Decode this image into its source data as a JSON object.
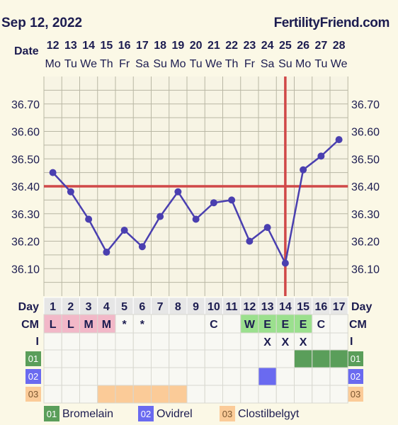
{
  "header": {
    "date": "Sep 12, 2022",
    "site": "FertilityFriend.com"
  },
  "labels": {
    "date_row": "Date",
    "day_row": "Day",
    "cm_row": "CM",
    "i_row": "I"
  },
  "colors": {
    "background": "#fbf8e6",
    "grid_line": "#b9b7a4",
    "temp_line": "#4a3fb0",
    "coverline": "#d04848",
    "cm_pink": "#f2b8c8",
    "cm_green": "#9be08e",
    "med_01": "#5a9e5a",
    "med_02": "#6a6af0",
    "med_03": "#fbcb98",
    "day_cell": "#e6e6e6",
    "row_cell": "#f8f8f3"
  },
  "chart_data": {
    "type": "line",
    "x_dates": [
      "12",
      "13",
      "14",
      "15",
      "16",
      "17",
      "18",
      "19",
      "20",
      "21",
      "22",
      "23",
      "24",
      "25",
      "26",
      "27",
      "28"
    ],
    "x_weekdays": [
      "Mo",
      "Tu",
      "We",
      "Th",
      "Fr",
      "Sa",
      "Su",
      "Mo",
      "Tu",
      "We",
      "Th",
      "Fr",
      "Sa",
      "Su",
      "Mo",
      "Tu",
      "We"
    ],
    "cycle_days": [
      1,
      2,
      3,
      4,
      5,
      6,
      7,
      8,
      9,
      10,
      11,
      12,
      13,
      14,
      15,
      16,
      17
    ],
    "series": [
      {
        "values": [
          36.45,
          36.38,
          36.28,
          36.16,
          36.24,
          36.18,
          36.29,
          36.38,
          36.28,
          36.34,
          36.35,
          36.2,
          36.25,
          36.12,
          36.46,
          36.51,
          36.57
        ]
      }
    ],
    "y_ticks": [
      "36.70",
      "36.60",
      "36.50",
      "36.40",
      "36.30",
      "36.20",
      "36.10"
    ],
    "ylim": [
      36.0,
      36.8
    ],
    "coverline": 36.4,
    "ovulation_day": 14,
    "grid": true
  },
  "cm": [
    "L",
    "L",
    "M",
    "M",
    "*",
    "*",
    "",
    "",
    "",
    "C",
    "",
    "W",
    "E",
    "E",
    "E",
    "C",
    ""
  ],
  "intercourse": [
    "",
    "",
    "",
    "",
    "",
    "",
    "",
    "",
    "",
    "",
    "",
    "",
    "X",
    "X",
    "X",
    "",
    ""
  ],
  "meds": [
    {
      "code": "01",
      "name": "Bromelain",
      "color": "#5a9e5a",
      "days": [
        15,
        16,
        17
      ]
    },
    {
      "code": "02",
      "name": "Ovidrel",
      "color": "#6a6af0",
      "days": [
        13
      ]
    },
    {
      "code": "03",
      "name": "Clostilbelgyt",
      "color": "#fbcb98",
      "days": [
        4,
        5,
        6,
        7,
        8
      ]
    }
  ]
}
